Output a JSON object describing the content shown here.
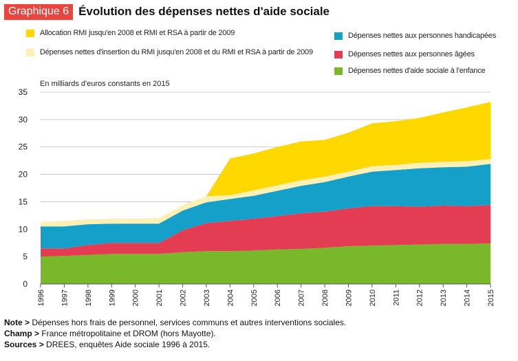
{
  "header": {
    "badge": "Graphique 6",
    "title": "Évolution des dépenses nettes d'aide sociale"
  },
  "unit_label": "En milliards d'euros constants en 2015",
  "colors": {
    "rmi": "#ffd800",
    "insertion": "#fcf0b4",
    "handicap": "#14a0c8",
    "agees": "#e43c52",
    "enfance": "#78b82a",
    "badge": "#e8463e"
  },
  "chart_data": {
    "type": "area",
    "stacked": true,
    "title": "Évolution des dépenses nettes d'aide sociale",
    "ylabel": "En milliards d'euros constants en 2015",
    "xlabel": "",
    "ylim": [
      0,
      35
    ],
    "yticks": [
      0,
      5,
      10,
      15,
      20,
      25,
      30,
      35
    ],
    "grid": true,
    "x": [
      "1996",
      "1997",
      "1998",
      "1999",
      "2000",
      "2001",
      "2002",
      "2003",
      "2004",
      "2005",
      "2006",
      "2007",
      "2008",
      "2009",
      "2010",
      "2011",
      "2012",
      "2013",
      "2014",
      "2015"
    ],
    "series": [
      {
        "key": "enfance",
        "name": "Dépenses nettes d'aide sociale à l'enfance",
        "values": [
          5.0,
          5.1,
          5.3,
          5.5,
          5.5,
          5.5,
          5.8,
          6.0,
          6.0,
          6.1,
          6.3,
          6.4,
          6.6,
          6.9,
          7.0,
          7.1,
          7.2,
          7.3,
          7.3,
          7.4
        ]
      },
      {
        "key": "agees",
        "name": "Dépenses nettes aux personnes âgées",
        "values": [
          1.5,
          1.4,
          1.8,
          2.0,
          2.0,
          2.0,
          4.0,
          5.1,
          5.5,
          5.8,
          6.1,
          6.5,
          6.6,
          6.9,
          7.2,
          7.1,
          6.9,
          7.0,
          6.9,
          7.0
        ]
      },
      {
        "key": "handicap",
        "name": "Dépenses nettes aux personnes handicapées",
        "values": [
          4.0,
          4.0,
          3.8,
          3.5,
          3.5,
          3.5,
          3.6,
          3.8,
          4.0,
          4.2,
          4.6,
          5.0,
          5.4,
          5.8,
          6.3,
          6.6,
          7.0,
          7.0,
          7.2,
          7.5
        ]
      },
      {
        "key": "insertion",
        "name": "Dépenses nettes d'insertion du RMI jusqu'en 2008 et du RMI et RSA à partir de 2009",
        "values": [
          0.8,
          1.0,
          0.9,
          0.9,
          0.9,
          1.0,
          1.0,
          1.1,
          0.7,
          1.0,
          1.0,
          1.0,
          1.0,
          0.9,
          1.0,
          0.9,
          1.0,
          1.0,
          1.0,
          0.9
        ]
      },
      {
        "key": "rmi",
        "name": "Allocation RMI jusqu'en 2008 et RMI et RSA à partir de 2009",
        "values": [
          0,
          0,
          0,
          0,
          0,
          0,
          0,
          0,
          6.7,
          6.7,
          7.0,
          7.1,
          6.7,
          7.1,
          7.8,
          8.0,
          8.2,
          9.0,
          9.8,
          10.4
        ]
      }
    ]
  },
  "legend": [
    {
      "key": "rmi",
      "label": "Allocation RMI jusqu'en 2008 et RMI et RSA à partir de 2009"
    },
    {
      "key": "handicap",
      "label": "Dépenses nettes aux personnes handicapées"
    },
    {
      "key": "insertion",
      "label": "Dépenses nettes d'insertion du RMI jusqu'en 2008 et du RMI et RSA à partir de 2009"
    },
    {
      "key": "agees",
      "label": "Dépenses nettes aux personnes âgées"
    },
    {
      "key": "enfance",
      "label": "Dépenses nettes d'aide sociale à l'enfance"
    }
  ],
  "notes": [
    {
      "label": "Note >",
      "text": " Dépenses hors frais de personnel, services communs et autres interventions sociales."
    },
    {
      "label": "Champ >",
      "text": " France métropolitaine et DROM (hors Mayotte)."
    },
    {
      "label": "Sources >",
      "text": " DREES, enquêtes Aide sociale 1996 à 2015."
    }
  ]
}
